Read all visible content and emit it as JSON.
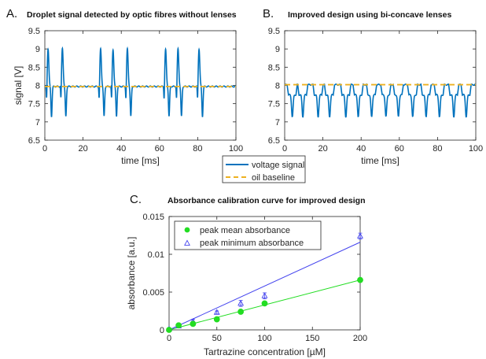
{
  "chart_data": [
    {
      "type": "line",
      "panel": "A.",
      "title": "Droplet signal detected by optic fibres without lenses",
      "xlabel": "time [ms]",
      "ylabel": "signal [V]",
      "xlim": [
        0,
        100
      ],
      "ylim": [
        6.5,
        9.5
      ],
      "xticks": [
        0,
        20,
        40,
        60,
        80,
        100
      ],
      "yticks": [
        6.5,
        7,
        7.5,
        8,
        8.5,
        9,
        9.5
      ],
      "grid": false,
      "baseline": 7.97,
      "droplets": [
        {
          "t": 2.0,
          "peak": 9.0,
          "min": 7.15
        },
        {
          "t": 9.5,
          "peak": 9.02,
          "min": 7.15
        },
        {
          "t": 29.5,
          "peak": 9.0,
          "min": 7.15
        },
        {
          "t": 36.0,
          "peak": 8.98,
          "min": 7.15
        },
        {
          "t": 43.5,
          "peak": 9.0,
          "min": 7.15
        },
        {
          "t": 63.5,
          "peak": 8.98,
          "min": 7.15
        },
        {
          "t": 70.0,
          "peak": 9.0,
          "min": 7.15
        },
        {
          "t": 81.0,
          "peak": 9.0,
          "min": 7.15
        }
      ],
      "series": [
        {
          "name": "voltage signal",
          "color": "#0072BD"
        },
        {
          "name": "oil baseline",
          "color": "#EDB120",
          "value": 7.97
        }
      ]
    },
    {
      "type": "line",
      "panel": "B.",
      "title": "Improved design using bi-concave lenses",
      "xlabel": "time [ms]",
      "ylabel": "",
      "xlim": [
        0,
        100
      ],
      "ylim": [
        6.5,
        9.5
      ],
      "xticks": [
        0,
        20,
        40,
        60,
        80,
        100
      ],
      "yticks": [
        6.5,
        7,
        7.5,
        8,
        8.5,
        9,
        9.5
      ],
      "grid": false,
      "baseline": 8.02,
      "droplets": [
        {
          "t": 2.5,
          "min": 7.15
        },
        {
          "t": 8.0,
          "min": 7.15
        },
        {
          "t": 16.0,
          "min": 7.15
        },
        {
          "t": 22.0,
          "min": 7.15
        },
        {
          "t": 30.5,
          "min": 7.15
        },
        {
          "t": 37.0,
          "min": 7.15
        },
        {
          "t": 44.0,
          "min": 7.15
        },
        {
          "t": 51.5,
          "min": 7.15
        },
        {
          "t": 58.0,
          "min": 7.15
        },
        {
          "t": 65.5,
          "min": 7.15
        },
        {
          "t": 72.5,
          "min": 7.15
        },
        {
          "t": 79.5,
          "min": 7.15
        },
        {
          "t": 87.0,
          "min": 7.15
        },
        {
          "t": 93.5,
          "min": 7.15
        }
      ],
      "series": [
        {
          "name": "voltage signal",
          "color": "#0072BD"
        },
        {
          "name": "oil baseline",
          "color": "#EDB120",
          "value": 8.02
        }
      ]
    },
    {
      "type": "scatter",
      "panel": "C.",
      "title": "Absorbance calibration curve for improved design",
      "xlabel": "Tartrazine concentration [µM]",
      "ylabel": "absorbance [a.u.]",
      "xlim": [
        0,
        200
      ],
      "ylim": [
        0,
        0.015
      ],
      "xticks": [
        0,
        50,
        100,
        150,
        200
      ],
      "yticks": [
        0,
        0.005,
        0.01,
        0.015
      ],
      "ytick_labels": [
        "0",
        "0.005",
        "0.01",
        "0.015"
      ],
      "legend_position": "top-left",
      "series": [
        {
          "name": "peak mean absorbance",
          "marker": "circle",
          "color": "#22DD22",
          "x": [
            0,
            10,
            25,
            50,
            75,
            100,
            200
          ],
          "y": [
            0.0,
            0.0006,
            0.0008,
            0.0014,
            0.0024,
            0.0035,
            0.0066
          ],
          "fit": {
            "x": [
              0,
              200
            ],
            "y": [
              0.0,
              0.0066
            ]
          }
        },
        {
          "name": "peak minimum absorbance",
          "marker": "triangle",
          "color": "#4444EE",
          "x": [
            0,
            10,
            25,
            50,
            75,
            100,
            200
          ],
          "y": [
            0.0001,
            0.0005,
            0.0011,
            0.0023,
            0.0035,
            0.0045,
            0.0124
          ],
          "err": [
            0.0001,
            0.0002,
            0.0003,
            0.0002,
            0.0004,
            0.0004,
            0.0004
          ],
          "fit": {
            "x": [
              0,
              200
            ],
            "y": [
              0.0,
              0.0116
            ]
          }
        }
      ]
    }
  ],
  "legend_ab": {
    "items": [
      "voltage signal",
      "oil baseline"
    ]
  }
}
